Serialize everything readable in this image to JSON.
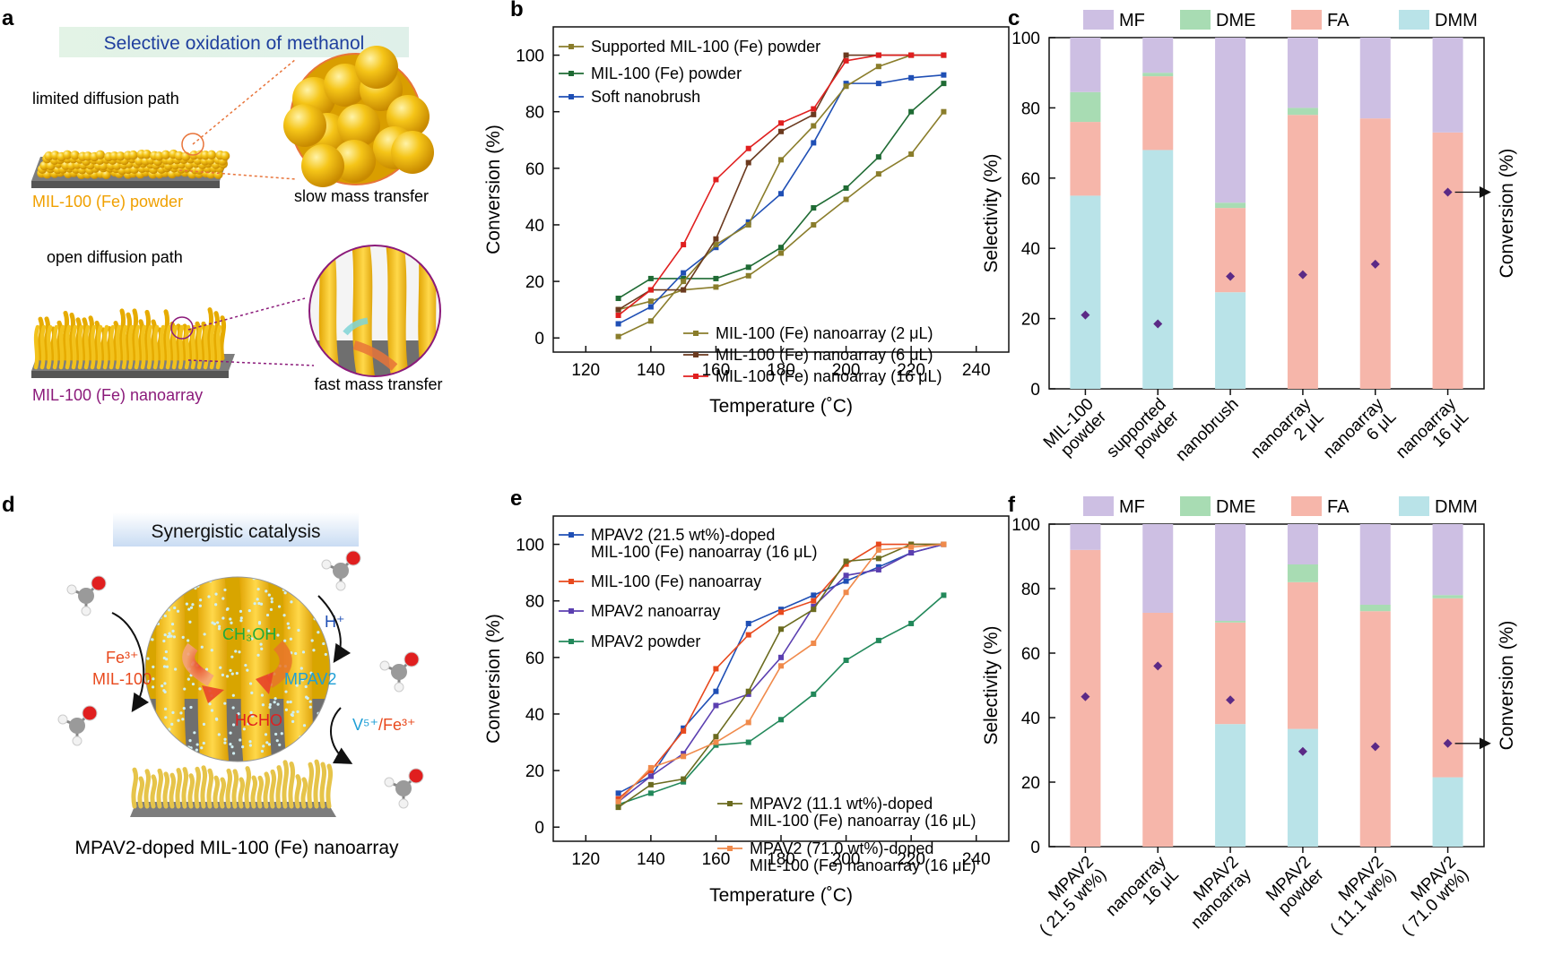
{
  "panels": {
    "a": {
      "letter": "a",
      "banner": "Selective oxidation of methanol",
      "top_label": "limited diffusion path",
      "top_material": "MIL-100 (Fe) powder",
      "top_callout": "slow mass transfer",
      "bottom_label": "open diffusion path",
      "bottom_material": "MIL-100 (Fe) nanoarray",
      "bottom_callout": "fast mass transfer"
    },
    "d": {
      "letter": "d",
      "banner": "Synergistic catalysis",
      "ch3oh": "CH₃OH",
      "hcho": "HCHO",
      "mpav2": "MPAV2",
      "fe": "Fe³⁺",
      "mil100": "MIL-100",
      "hplus": "H⁺",
      "v5": "V⁵⁺",
      "fe3": "/Fe³⁺",
      "caption": "MPAV2-doped MIL-100 (Fe) nanoarray"
    }
  },
  "colors": {
    "MF": "#cdbfe3",
    "DME": "#a8dcb3",
    "FA": "#f6b6aa",
    "DMM": "#b9e3e8",
    "diamond": "#5b2a86",
    "olive": "#8a7d2b",
    "darkgreen": "#1f6b34",
    "blue": "#1f4fb5",
    "brown": "#6b3a1f",
    "red": "#e01f1f",
    "orangered": "#e8491d",
    "purple": "#5b3fb0",
    "green": "#22885a",
    "orange": "#f08a4b",
    "olive2": "#6b6b1f"
  },
  "chart_data": [
    {
      "id": "b",
      "letter": "b",
      "type": "line",
      "xlabel": "Temperature (˚C)",
      "ylabel": "Conversion (%)",
      "xlim": [
        110,
        250
      ],
      "ylim": [
        -5,
        110
      ],
      "xticks": [
        120,
        140,
        160,
        180,
        200,
        220,
        240
      ],
      "yticks": [
        0,
        20,
        40,
        60,
        80,
        100
      ],
      "x": [
        130,
        140,
        150,
        160,
        170,
        180,
        190,
        200,
        210,
        220,
        230
      ],
      "series": [
        {
          "name": "Supported MIL-100 (Fe) powder",
          "color": "#8a7d2b",
          "legend": "top",
          "values": [
            10,
            13,
            17,
            18,
            22,
            30,
            40,
            49,
            58,
            65,
            80
          ]
        },
        {
          "name": "MIL-100 (Fe) powder",
          "color": "#1f6b34",
          "legend": "top",
          "values": [
            14,
            21,
            21,
            21,
            25,
            32,
            46,
            53,
            64,
            80,
            90
          ]
        },
        {
          "name": "Soft nanobrush",
          "color": "#1f4fb5",
          "legend": "top",
          "values": [
            5,
            11,
            23,
            32,
            41,
            51,
            69,
            90,
            90,
            92,
            93
          ]
        },
        {
          "name": "MIL-100 (Fe) nanoarray (2 μL)",
          "color": "#8a7d2b",
          "legend": "bottom",
          "values": [
            0.5,
            6,
            20,
            33,
            40,
            63,
            75,
            89,
            96,
            100,
            100
          ]
        },
        {
          "name": "MIL-100 (Fe) nanoarray (6 μL)",
          "color": "#6b3a1f",
          "legend": "bottom",
          "values": [
            10,
            17,
            17,
            35,
            62,
            73,
            79,
            100,
            100,
            100,
            100
          ]
        },
        {
          "name": "MIL-100 (Fe) nanoarray (16 μL)",
          "color": "#e01f1f",
          "legend": "bottom",
          "values": [
            8,
            17,
            33,
            56,
            67,
            76,
            81,
            98,
            100,
            100,
            100
          ]
        }
      ]
    },
    {
      "id": "c",
      "letter": "c",
      "type": "bar",
      "stacked": true,
      "ylabel": "Selectivity (%)",
      "y2label": "Conversion (%)",
      "ylim": [
        0,
        100
      ],
      "yticks": [
        0,
        20,
        40,
        60,
        80,
        100
      ],
      "legend": [
        "MF",
        "DME",
        "FA",
        "DMM"
      ],
      "categories": [
        [
          "MIL-100",
          "powder"
        ],
        [
          "supported",
          "powder"
        ],
        [
          "nanobrush"
        ],
        [
          "nanoarray",
          "2 μL"
        ],
        [
          "nanoarray",
          "6 μL"
        ],
        [
          "nanoarray",
          "16 μL"
        ]
      ],
      "series": [
        {
          "name": "DMM",
          "values": [
            55,
            68,
            27.5,
            0,
            0,
            0
          ]
        },
        {
          "name": "FA",
          "values": [
            21,
            21,
            24,
            78,
            77,
            73
          ]
        },
        {
          "name": "DME",
          "values": [
            8.5,
            1,
            1.5,
            2,
            0,
            0
          ]
        },
        {
          "name": "MF",
          "values": [
            15.5,
            10,
            47,
            20,
            23,
            27
          ]
        }
      ],
      "conversion": [
        21,
        18.5,
        32,
        32.5,
        35.5,
        56
      ],
      "arrow_index": 5
    },
    {
      "id": "e",
      "letter": "e",
      "type": "line",
      "xlabel": "Temperature (˚C)",
      "ylabel": "Conversion (%)",
      "xlim": [
        110,
        250
      ],
      "ylim": [
        -5,
        110
      ],
      "xticks": [
        120,
        140,
        160,
        180,
        200,
        220,
        240
      ],
      "yticks": [
        0,
        20,
        40,
        60,
        80,
        100
      ],
      "x": [
        130,
        140,
        150,
        160,
        170,
        180,
        190,
        200,
        210,
        220,
        230
      ],
      "series": [
        {
          "name": "MPAV2 (21.5 wt%)-doped MIL-100 (Fe) nanoarray (16 μL)",
          "color": "#1f4fb5",
          "legend": "top",
          "values": [
            12,
            18,
            35,
            48,
            72,
            77,
            82,
            87,
            92,
            97,
            100
          ]
        },
        {
          "name": "MIL-100 (Fe) nanoarray",
          "color": "#e8491d",
          "legend": "top",
          "values": [
            10,
            20,
            34,
            56,
            68,
            76,
            80,
            93,
            100,
            100,
            100
          ]
        },
        {
          "name": "MPAV2 nanoarray",
          "color": "#5b3fb0",
          "legend": "top",
          "values": [
            9,
            18,
            26,
            43,
            47,
            60,
            78,
            89,
            91,
            97,
            100
          ]
        },
        {
          "name": "MPAV2 powder",
          "color": "#22885a",
          "legend": "top",
          "values": [
            8,
            12,
            16,
            29,
            30,
            38,
            47,
            59,
            66,
            72,
            82
          ]
        },
        {
          "name": "MPAV2 (11.1 wt%)-doped MIL-100 (Fe) nanoarray (16 μL)",
          "color": "#6b6b1f",
          "legend": "bottom",
          "values": [
            7,
            15,
            17,
            32,
            48,
            70,
            77,
            94,
            95,
            100,
            100
          ]
        },
        {
          "name": "MPAV2 (71.0 wt%)-doped MIL-100 (Fe) nanoarray (16 μL)",
          "color": "#f08a4b",
          "legend": "bottom",
          "values": [
            9,
            21,
            25,
            30,
            37,
            57,
            65,
            83,
            98,
            99,
            100
          ]
        }
      ]
    },
    {
      "id": "f",
      "letter": "f",
      "type": "bar",
      "stacked": true,
      "ylabel": "Selectivity (%)",
      "y2label": "Conversion (%)",
      "ylim": [
        0,
        100
      ],
      "yticks": [
        0,
        20,
        40,
        60,
        80,
        100
      ],
      "legend": [
        "MF",
        "DME",
        "FA",
        "DMM"
      ],
      "categories": [
        [
          "MPAV2",
          "( 21.5 wt%)"
        ],
        [
          "nanoarray",
          "16 μL"
        ],
        [
          "MPAV2",
          "nanoarray"
        ],
        [
          "MPAV2",
          "powder"
        ],
        [
          "MPAV2",
          "( 11.1 wt%)"
        ],
        [
          "MPAV2",
          "( 71.0 wt%)"
        ]
      ],
      "series": [
        {
          "name": "DMM",
          "values": [
            0,
            0,
            38,
            36.5,
            0,
            21.5
          ]
        },
        {
          "name": "FA",
          "values": [
            92,
            72.5,
            31.5,
            45.5,
            73,
            55.5
          ]
        },
        {
          "name": "DME",
          "values": [
            0,
            0,
            0.5,
            5.5,
            2,
            1
          ]
        },
        {
          "name": "MF",
          "values": [
            8,
            27.5,
            30,
            12.5,
            25,
            22
          ]
        }
      ],
      "conversion": [
        46.5,
        56,
        45.5,
        29.5,
        31,
        32
      ],
      "arrow_index": 5
    }
  ]
}
